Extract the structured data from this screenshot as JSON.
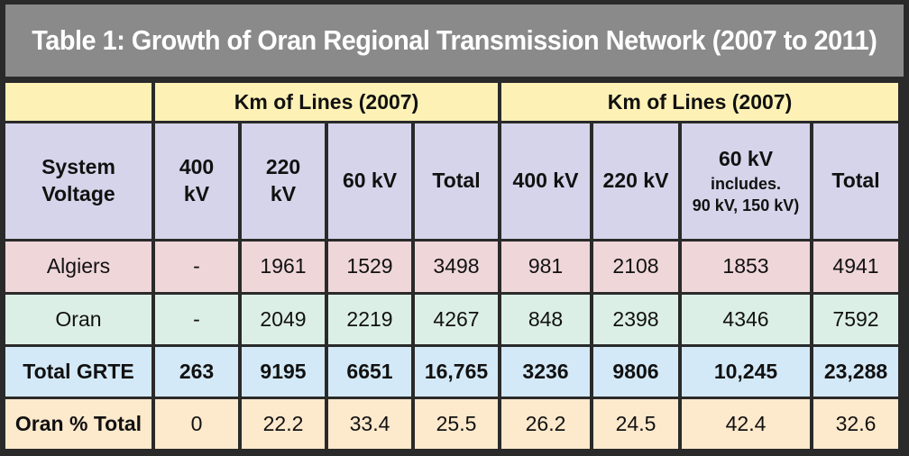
{
  "title": "Table 1: Growth of Oran Regional Transmission Network (2007 to 2011)",
  "group_headers": [
    "Km of Lines (2007)",
    "Km of Lines (2007)"
  ],
  "column_headers": {
    "row_label": [
      "System",
      "Voltage"
    ],
    "g1": [
      [
        "400",
        "kV"
      ],
      [
        "220",
        "kV"
      ],
      [
        "60 kV"
      ],
      [
        "Total"
      ]
    ],
    "g2_400": "400 kV",
    "g2_220": "220 kV",
    "g2_60": [
      "60 kV",
      "includes.",
      "90 kV, 150 kV)"
    ],
    "g2_total": "Total"
  },
  "rows": [
    {
      "label": "Algiers",
      "values": [
        "-",
        "1961",
        "1529",
        "3498",
        "981",
        "2108",
        "1853",
        "4941"
      ]
    },
    {
      "label": "Oran",
      "values": [
        "-",
        "2049",
        "2219",
        "4267",
        "848",
        "2398",
        "4346",
        "7592"
      ]
    },
    {
      "label": "Total GRTE",
      "values": [
        "263",
        "9195",
        "6651",
        "16,765",
        "3236",
        "9806",
        "10,245",
        "23,288"
      ]
    },
    {
      "label": "Oran % Total",
      "values": [
        "0",
        "22.2",
        "33.4",
        "25.5",
        "26.2",
        "24.5",
        "42.4",
        "32.6"
      ]
    }
  ],
  "colors": {
    "frame": "#2a2a2a",
    "title_bg": "#8a8a8a",
    "header_group_bg": "#fdf1b5",
    "header_sub_bg": "#d6d4ea",
    "algiers_bg": "#efd6d9",
    "oran_bg": "#dcefe6",
    "total_bg": "#d4e9f7",
    "pct_bg": "#fde9cc"
  }
}
